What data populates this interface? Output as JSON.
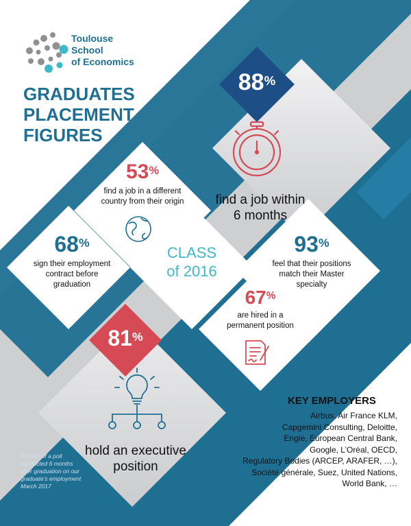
{
  "colors": {
    "teal": "#1f6f93",
    "teal_light": "#2b8ab5",
    "cyan": "#3fb8c9",
    "red": "#d64a55",
    "gray_bg": "#cfd0d2",
    "gray_card": "#d6d7d9",
    "navy": "#1a3d6b",
    "dark_text": "#1e2a33"
  },
  "logo": {
    "line1": "Toulouse",
    "line2": "School",
    "line3": "of Economics"
  },
  "title": {
    "line1": "GRADUATES",
    "line2": "PLACEMENT",
    "line3": "FIGURES"
  },
  "stats": {
    "s88": {
      "value": "88",
      "unit": "%",
      "label_line1": "find a job within",
      "label_line2": "6 months"
    },
    "s53": {
      "value": "53",
      "unit": "%",
      "label_line1": "find a job in a different",
      "label_line2": "country from their origin"
    },
    "s68": {
      "value": "68",
      "unit": "%",
      "label_line1": "sign their employment",
      "label_line2": "contract before",
      "label_line3": "graduation"
    },
    "s93": {
      "value": "93",
      "unit": "%",
      "label_line1": "feel that their positions",
      "label_line2": "match their Master",
      "label_line3": "specialty"
    },
    "s67": {
      "value": "67",
      "unit": "%",
      "label_line1": "are hired in a",
      "label_line2": "permanent position"
    },
    "s81": {
      "value": "81",
      "unit": "%",
      "label_line1": "hold an executive",
      "label_line2": "position"
    }
  },
  "center": {
    "line1": "CLASS",
    "line2": "of 2016"
  },
  "employers": {
    "heading": "KEY EMPLOYERS",
    "lines": [
      "Airbus, Air France KLM,",
      "Capgemini Consulting, Deloitte,",
      "Engie, European Central Bank,",
      "Google, L’Oréal, OECD,",
      "Regulatory Bodies (ARCEP, ARAFER, …),",
      "Société générale, Suez, United Nations,",
      "World Bank, …"
    ]
  },
  "footnote": {
    "lines": [
      "Results of a poll",
      "conducted 6 months",
      "after graduation on our",
      "graduate’s employment",
      "March 2017"
    ]
  },
  "icons": {
    "stopwatch": "stopwatch-icon",
    "globe": "globe-icon",
    "contract": "contract-icon",
    "lightbulb": "lightbulb-network-icon"
  }
}
